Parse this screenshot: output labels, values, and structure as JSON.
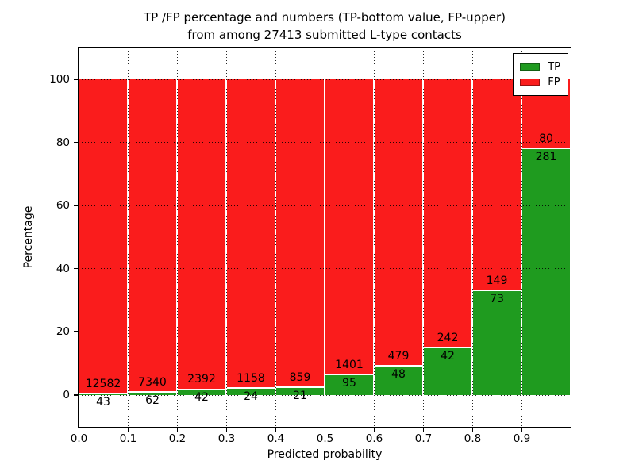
{
  "title": {
    "line1": "TP /FP percentage and numbers (TP-bottom value, FP-upper)",
    "line2": "from among 27413 submitted L-type contacts"
  },
  "axes": {
    "xlabel": "Predicted probability",
    "ylabel": "Percentage",
    "x_tick_labels": [
      "0.0",
      "0.1",
      "0.2",
      "0.3",
      "0.4",
      "0.5",
      "0.6",
      "0.7",
      "0.8",
      "0.9"
    ],
    "y_tick_labels": [
      "0",
      "20",
      "40",
      "60",
      "80",
      "100"
    ],
    "y_tick_values": [
      0,
      20,
      40,
      60,
      80,
      100
    ],
    "xlim": [
      0.0,
      1.0
    ],
    "ylim": [
      -10,
      110
    ],
    "grid": "dotted black"
  },
  "legend": {
    "position": "upper right",
    "items": [
      {
        "label": "TP",
        "color": "#1f9b1f"
      },
      {
        "label": "FP",
        "color": "#fa1c1c"
      }
    ]
  },
  "chart_data": {
    "type": "bar",
    "stacked": true,
    "title": "TP /FP percentage and numbers (TP-bottom value, FP-upper) from among 27413 submitted L-type contacts",
    "xlabel": "Predicted probability",
    "ylabel": "Percentage",
    "total_contacts": 27413,
    "bin_edges": [
      0.0,
      0.1,
      0.2,
      0.3,
      0.4,
      0.5,
      0.6,
      0.7,
      0.8,
      0.9,
      1.0
    ],
    "categories": [
      "0.0-0.1",
      "0.1-0.2",
      "0.2-0.3",
      "0.3-0.4",
      "0.4-0.5",
      "0.5-0.6",
      "0.6-0.7",
      "0.7-0.8",
      "0.8-0.9",
      "0.9-1.0"
    ],
    "series": [
      {
        "name": "TP",
        "color": "#1f9b1f",
        "counts": [
          43,
          62,
          42,
          24,
          21,
          95,
          48,
          42,
          73,
          281
        ],
        "percent": [
          0.34,
          0.84,
          1.73,
          2.03,
          2.39,
          6.35,
          9.11,
          14.79,
          32.88,
          77.84
        ]
      },
      {
        "name": "FP",
        "color": "#fa1c1c",
        "counts": [
          12582,
          7340,
          2392,
          1158,
          859,
          1401,
          479,
          242,
          149,
          80
        ],
        "percent": [
          99.66,
          99.16,
          98.27,
          97.97,
          97.61,
          93.65,
          90.89,
          85.21,
          67.12,
          22.16
        ]
      }
    ],
    "bar_label_rule": "FP count printed above TP/FP boundary, TP count printed below boundary",
    "xlim": [
      0.0,
      1.0
    ],
    "ylim": [
      -10,
      110
    ],
    "legend_position": "upper right",
    "grid": true
  }
}
